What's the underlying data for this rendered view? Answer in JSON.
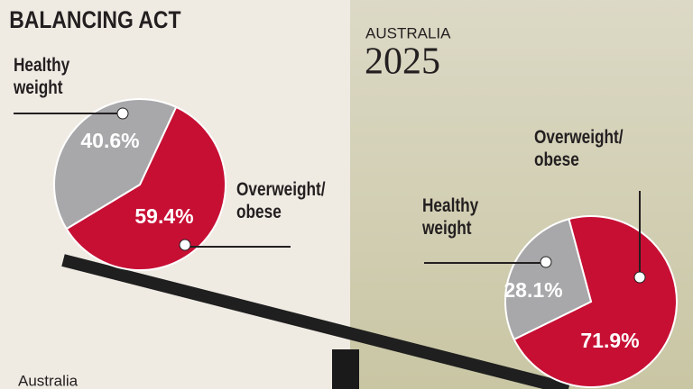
{
  "title": "BALANCING ACT",
  "chart_data": [
    {
      "type": "pie",
      "title": "Australia",
      "categories": [
        "Healthy weight",
        "Overweight/ obese"
      ],
      "values": [
        40.6,
        59.4
      ],
      "value_labels": [
        "40.6%",
        "59.4%"
      ],
      "colors": [
        "#a8a8aa",
        "#c70f34"
      ]
    },
    {
      "type": "pie",
      "subtitle": "AUSTRALIA",
      "title": "2025",
      "categories": [
        "Healthy weight",
        "Overweight/ obese"
      ],
      "values": [
        28.1,
        71.9
      ],
      "value_labels": [
        "28.1%",
        "71.9%"
      ],
      "colors": [
        "#a8a8aa",
        "#c70f34"
      ]
    }
  ]
}
